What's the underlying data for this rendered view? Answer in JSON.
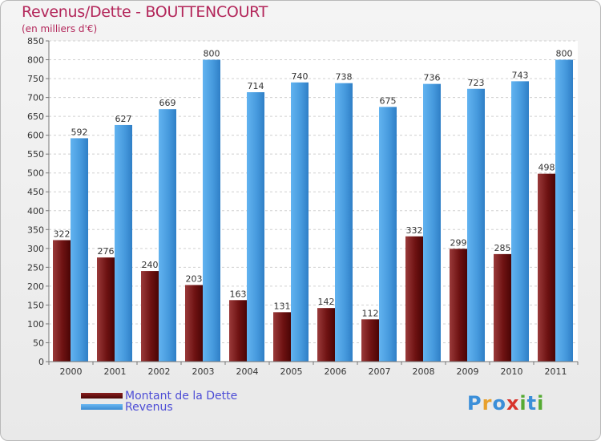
{
  "header": {
    "title": "Revenus/Dette - BOUTTENCOURT",
    "subtitle": "(en milliers d'€)"
  },
  "logo": {
    "text": "Proxiti",
    "letters": [
      "P",
      "r",
      "o",
      "x",
      "i",
      "t",
      "i"
    ],
    "colors": [
      "#3b8fd9",
      "#e8a02c",
      "#3b8fd9",
      "#d8342c",
      "#55aa33",
      "#3b8fd9",
      "#55aa33"
    ]
  },
  "chart_data": {
    "type": "bar",
    "title": "Revenus/Dette - BOUTTENCOURT",
    "ylabel": "(en milliers d'€)",
    "xlabel": "",
    "categories": [
      "2000",
      "2001",
      "2002",
      "2003",
      "2004",
      "2005",
      "2006",
      "2007",
      "2008",
      "2009",
      "2010",
      "2011"
    ],
    "series": [
      {
        "name": "Montant de la Dette",
        "color": "#7b1a1a",
        "values": [
          322,
          276,
          240,
          203,
          163,
          131,
          142,
          112,
          332,
          299,
          285,
          498
        ]
      },
      {
        "name": "Revenus",
        "color": "#4fa3e6",
        "values": [
          592,
          627,
          669,
          800,
          714,
          740,
          738,
          675,
          736,
          723,
          743,
          800
        ]
      }
    ],
    "ylim": [
      0,
      850
    ],
    "yticks": [
      0,
      50,
      100,
      150,
      200,
      250,
      300,
      350,
      400,
      450,
      500,
      550,
      600,
      650,
      700,
      750,
      800,
      850
    ],
    "grid": true,
    "legend": "bottom-left"
  }
}
